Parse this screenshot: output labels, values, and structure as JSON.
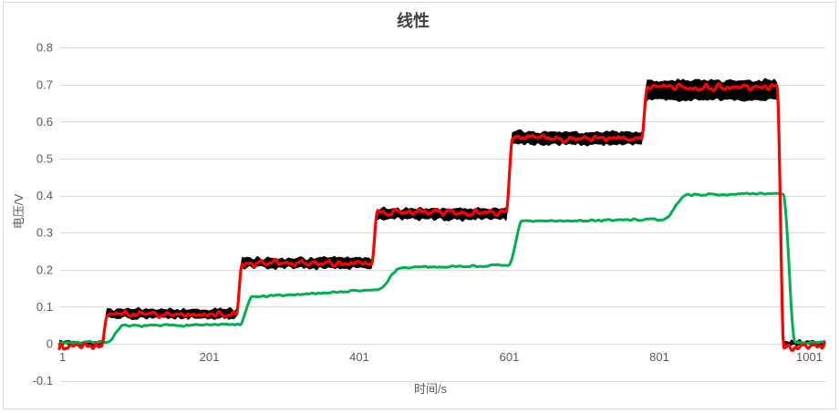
{
  "window": {
    "background": "#FFFFFF",
    "border_color": "#D9D9D9"
  },
  "chart_data": {
    "type": "line",
    "title": "线性",
    "xlabel": "时间/s",
    "ylabel": "电压/V",
    "xlim": [
      1,
      1022
    ],
    "ylim": [
      -0.1,
      0.8
    ],
    "x_ticks": [
      1,
      201,
      401,
      601,
      801,
      1001
    ],
    "y_ticks": [
      -0.1,
      0,
      0.1,
      0.2,
      0.3,
      0.4,
      0.5,
      0.6,
      0.7,
      0.8
    ],
    "grid": "horizontal",
    "legend": "none",
    "colors": {
      "grid": "#D9D9D9",
      "tick_text": "#595959",
      "title_text": "#404040",
      "axis_title_text": "#595959",
      "series_black": "#000000",
      "series_red": "#FF0000",
      "series_green": "#00B050"
    },
    "step_rise_times": [
      57,
      237,
      417,
      597,
      777
    ],
    "drop_time": 958,
    "series": [
      {
        "name": "black-noisy-band",
        "kind": "band",
        "color": "#000000",
        "levels_low": [
          -0.005,
          0.068,
          0.204,
          0.336,
          0.538,
          0.658
        ],
        "levels_high": [
          0.008,
          0.094,
          0.232,
          0.366,
          0.572,
          0.712
        ],
        "end_low": -0.005,
        "end_high": 0.008,
        "rise_dur": 8,
        "drop_dur": 9,
        "noise_amp": 0.004
      },
      {
        "name": "green-line",
        "kind": "line",
        "color": "#00B050",
        "width": 3,
        "levels_start": [
          0.003,
          0.048,
          0.126,
          0.205,
          0.33,
          0.402
        ],
        "levels_end": [
          0.005,
          0.052,
          0.146,
          0.212,
          0.336,
          0.406
        ],
        "end_level": 0.003,
        "rise_lags": [
          8,
          5,
          9,
          3,
          30
        ],
        "rise_durs": [
          22,
          16,
          30,
          18,
          30
        ],
        "drop_lag": 8,
        "drop_dur": 16,
        "noise_amp": 0.002
      },
      {
        "name": "red-line",
        "kind": "line",
        "color": "#FF0000",
        "width": 3.2,
        "levels": [
          -0.007,
          0.079,
          0.217,
          0.355,
          0.557,
          0.694
        ],
        "end_level": -0.01,
        "rise_dur": 8,
        "drop_dur": 9,
        "noise_amp": 0.006
      }
    ]
  }
}
